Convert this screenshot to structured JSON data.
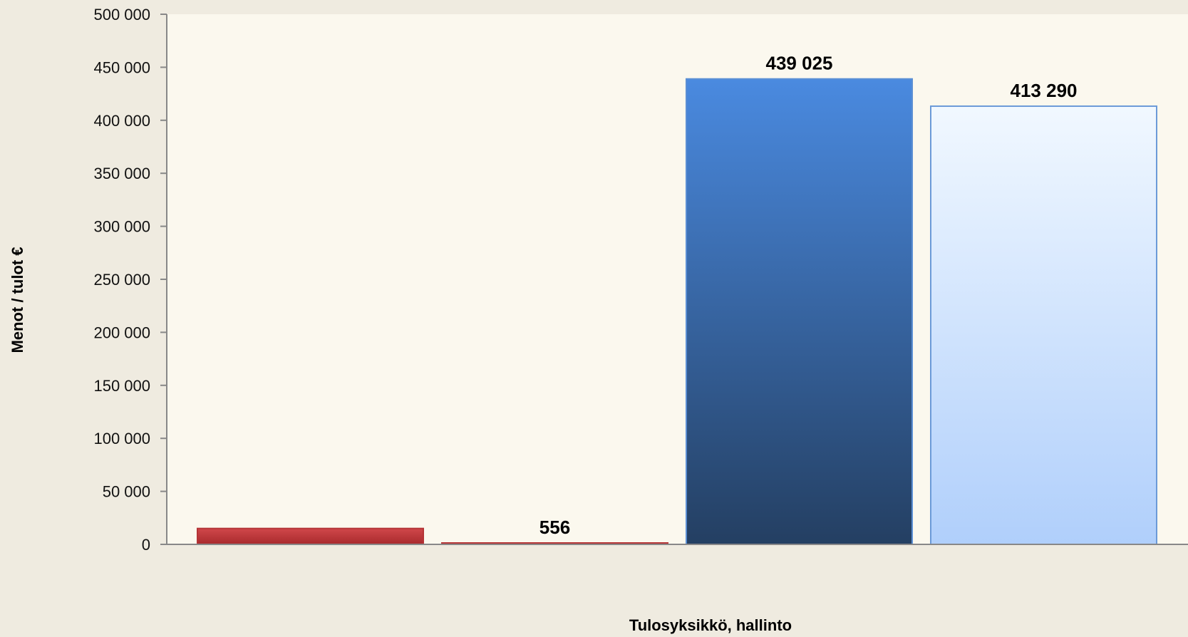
{
  "chart_data": {
    "type": "bar",
    "title": "",
    "xlabel": "Tulosyksikkö, hallinto",
    "ylabel": "Menot / tulot €",
    "ylim": [
      0,
      500000
    ],
    "yticks": [
      0,
      50000,
      100000,
      150000,
      200000,
      250000,
      300000,
      350000,
      400000,
      450000,
      500000
    ],
    "ytick_labels": [
      "0",
      "50 000",
      "100 000",
      "150 000",
      "200 000",
      "250 000",
      "300 000",
      "350 000",
      "400 000",
      "450 000",
      "500 000"
    ],
    "grid": false,
    "legend": "none",
    "bars": [
      {
        "value": 15000,
        "label": "",
        "color": "#c0393b"
      },
      {
        "value": 556,
        "label": "556",
        "color": "#c0393b"
      },
      {
        "value": 439025,
        "label": "439 025",
        "color": "#3a72c8"
      },
      {
        "value": 413290,
        "label": "413 290",
        "color": "#cfe3fb"
      }
    ]
  }
}
